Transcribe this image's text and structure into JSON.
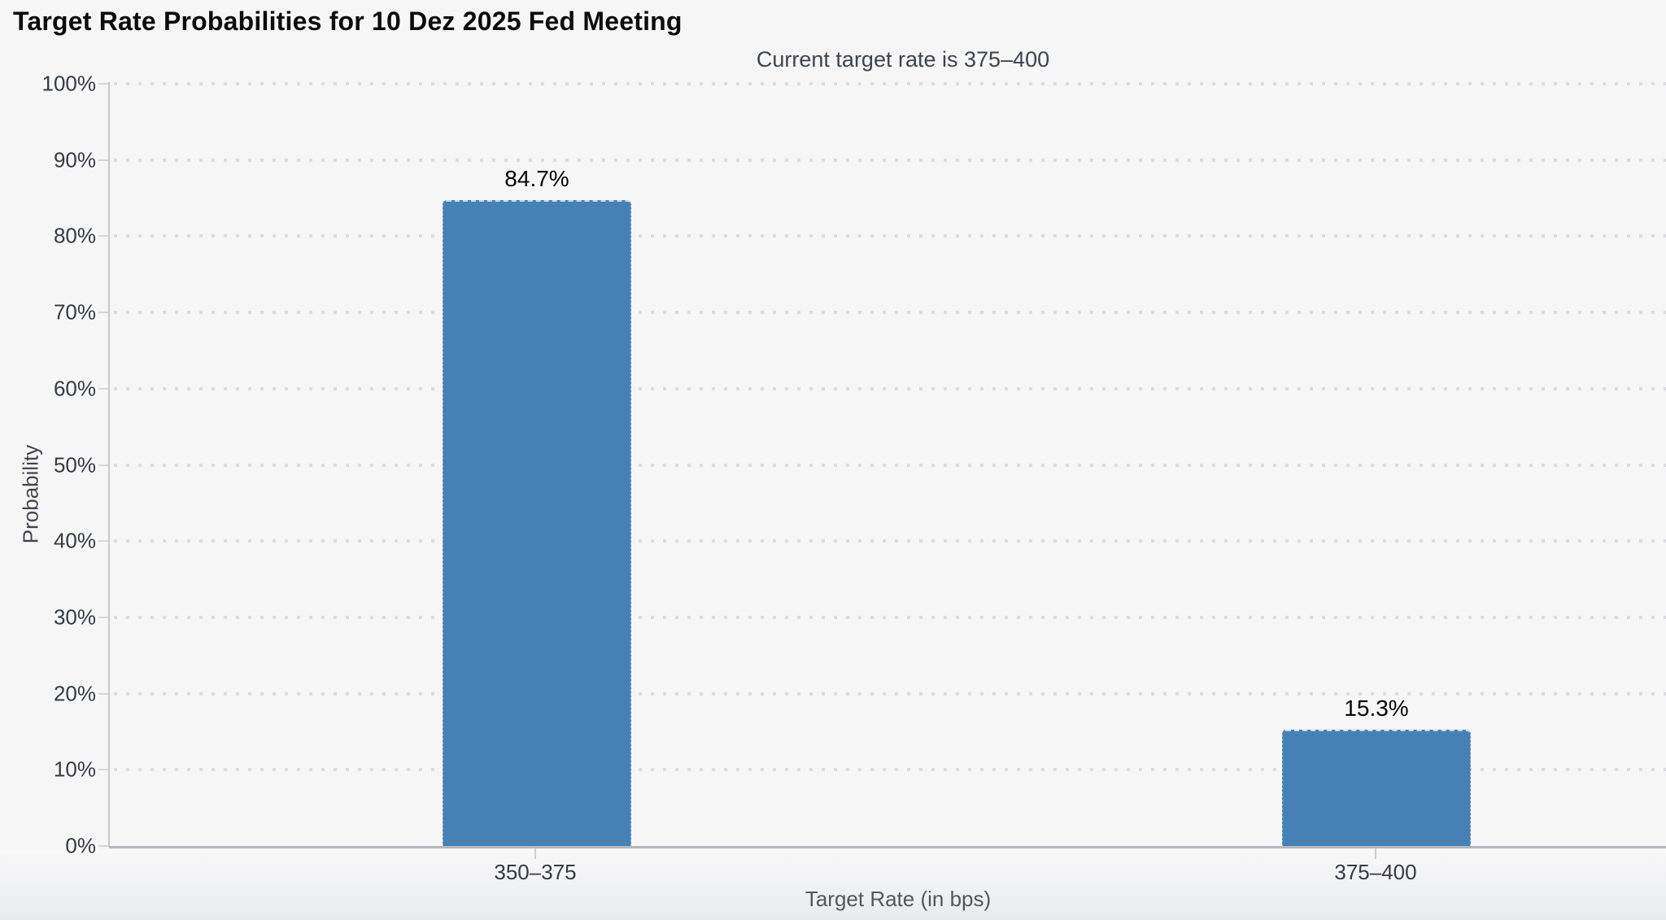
{
  "chart_data": {
    "type": "bar",
    "title": "Target Rate Probabilities for 10 Dez 2025 Fed Meeting",
    "subtitle": "Current target rate is 375–400",
    "categories": [
      "350–375",
      "375–400"
    ],
    "values": [
      84.7,
      15.3
    ],
    "value_labels": [
      "84.7%",
      "15.3%"
    ],
    "xlabel": "Target Rate (in bps)",
    "ylabel": "Probability",
    "ylim": [
      0,
      100
    ],
    "ytick_step": 10,
    "ytick_labels": [
      "0%",
      "10%",
      "20%",
      "30%",
      "40%",
      "50%",
      "60%",
      "70%",
      "80%",
      "90%",
      "100%"
    ],
    "grid": "horizontal-dotted",
    "legend_position": "none",
    "bar_color": "#4581b5",
    "background_color": "#f6f6f7"
  }
}
